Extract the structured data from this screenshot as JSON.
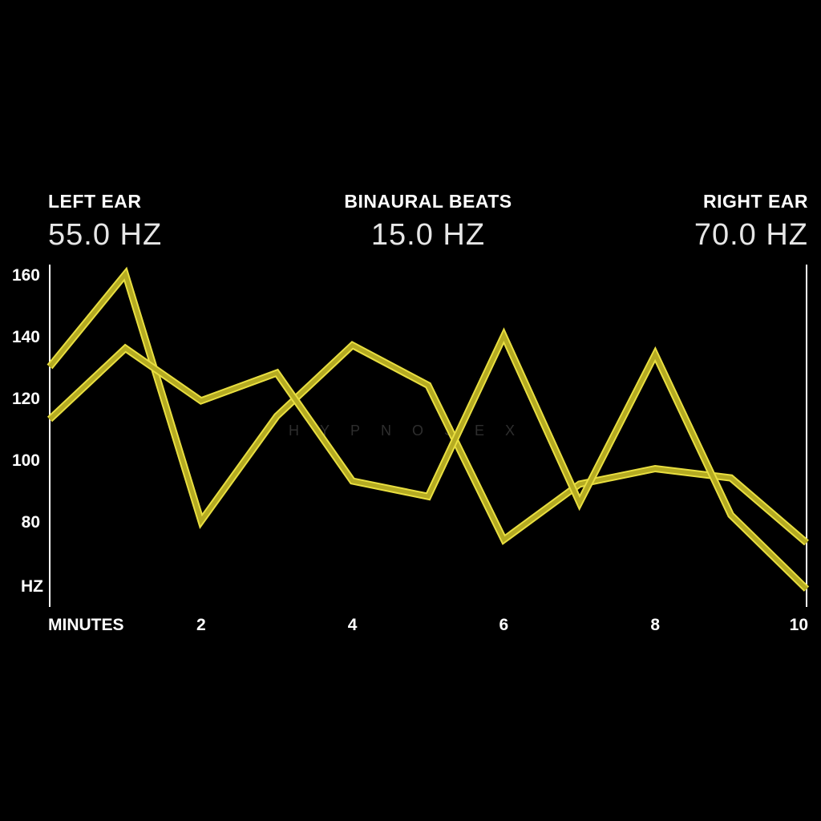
{
  "header": {
    "left_label": "LEFT EAR",
    "left_value": "55.0 HZ",
    "center_label": "BINAURAL BEATS",
    "center_value": "15.0 HZ",
    "right_label": "RIGHT EAR",
    "right_value": "70.0 HZ"
  },
  "watermark": "HYPNOSEX",
  "colors": {
    "background": "#000000",
    "line": "#b5ab22",
    "line_edge": "#e8de40",
    "axis": "#ffffff"
  },
  "chart_data": {
    "type": "line",
    "xlabel": "MINUTES",
    "ylabel": "HZ",
    "x": [
      0,
      1,
      2,
      3,
      4,
      5,
      6,
      7,
      8,
      9,
      10
    ],
    "x_ticks": [
      "2",
      "4",
      "6",
      "8",
      "10"
    ],
    "x_tick_values": [
      2,
      4,
      6,
      8,
      10
    ],
    "y_ticks": [
      "160",
      "140",
      "120",
      "100",
      "80"
    ],
    "y_tick_values": [
      160,
      140,
      120,
      100,
      80
    ],
    "xlim": [
      0,
      10
    ],
    "ylim": [
      60,
      160
    ],
    "grid": false,
    "series": [
      {
        "values": [
          130,
          160,
          80,
          114,
          137,
          124,
          74,
          92,
          97,
          94,
          73
        ]
      },
      {
        "values": [
          113,
          136,
          119,
          128,
          93,
          88,
          140,
          86,
          134,
          82,
          58
        ]
      }
    ]
  }
}
